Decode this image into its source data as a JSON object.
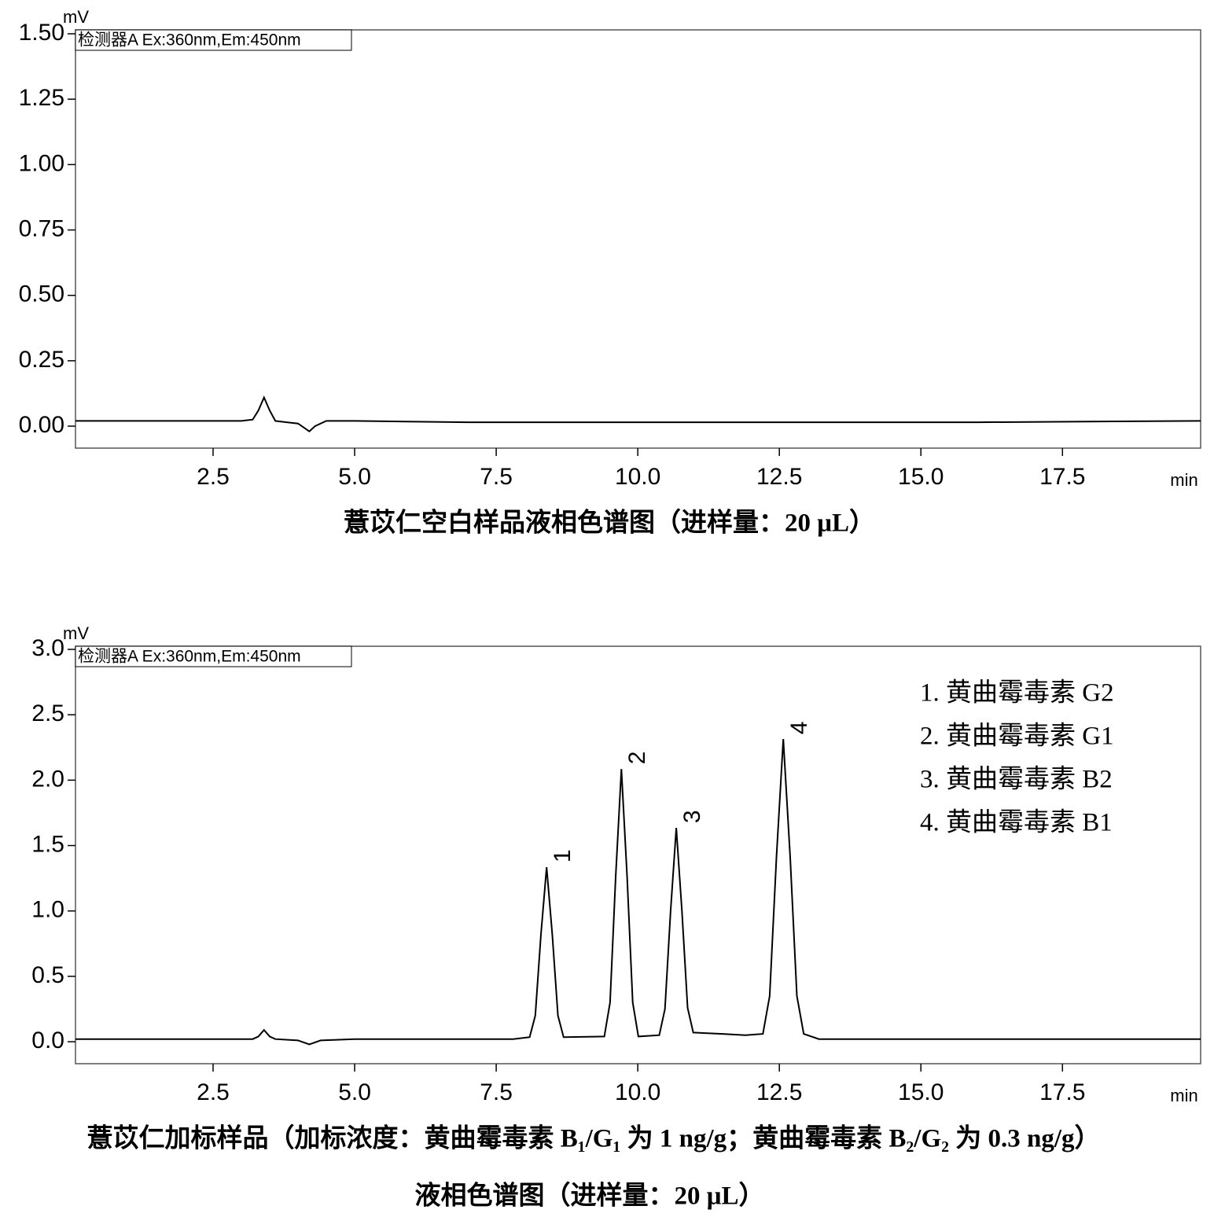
{
  "chart_data": [
    {
      "type": "line",
      "y_unit": "mV",
      "x_unit": "min",
      "detector": "检测器A Ex:360nm,Em:450nm",
      "caption": "薏苡仁空白样品液相色谱图（进样量：20 μL）",
      "color": "#000000",
      "x": [
        0.07,
        1,
        2,
        3,
        3.2,
        3.3,
        3.4,
        3.5,
        3.6,
        3.8,
        4.0,
        4.1,
        4.2,
        4.3,
        4.5,
        5,
        7,
        10,
        13,
        16,
        19.94
      ],
      "values": [
        0.02,
        0.02,
        0.02,
        0.02,
        0.025,
        0.06,
        0.11,
        0.06,
        0.02,
        0.015,
        0.01,
        -0.005,
        -0.02,
        0.0,
        0.02,
        0.02,
        0.015,
        0.015,
        0.015,
        0.015,
        0.02
      ],
      "xlim": [
        0.07,
        19.94
      ],
      "xticks": [
        2.5,
        {
          "value": 5,
          "label": "5.0"
        },
        7.5,
        {
          "value": 10,
          "label": "10.0"
        },
        12.5,
        {
          "value": 15,
          "label": "15.0"
        },
        17.5
      ],
      "ylim": [
        -0.084,
        1.515
      ],
      "yticks": [
        {
          "value": 0,
          "label": "0.00"
        },
        0.25,
        {
          "value": 0.5,
          "label": "0.50"
        },
        0.75,
        {
          "value": 1,
          "label": "1.00"
        },
        1.25,
        {
          "value": 1.5,
          "label": "1.50"
        }
      ]
    },
    {
      "type": "line",
      "y_unit": "mV",
      "x_unit": "min",
      "detector": "检测器A Ex:360nm,Em:450nm",
      "caption": [
        "薏苡仁加标样品（加标浓度：黄曲霉毒素 B₁/G₁ 为 1 ng/g；黄曲霉毒素 B₂/G₂ 为 0.3 ng/g）",
        "液相色谱图（进样量：20 μL）"
      ],
      "color": "#000000",
      "peak_labels": [
        "1",
        "2",
        "3",
        "4"
      ],
      "legend_items": [
        "1.  黄曲霉毒素 G2",
        "2.  黄曲霉毒素 G1",
        "3.  黄曲霉毒素 B2",
        "4.  黄曲霉毒素 B1"
      ],
      "x": [
        0.07,
        2,
        3.2,
        3.3,
        3.4,
        3.5,
        3.6,
        4.0,
        4.2,
        4.4,
        5,
        7,
        7.8,
        8.09,
        8.19,
        8.29,
        8.39,
        8.49,
        8.59,
        8.69,
        9.41,
        9.51,
        9.61,
        9.71,
        9.81,
        9.91,
        10.01,
        10.38,
        10.48,
        10.58,
        10.68,
        10.78,
        10.88,
        10.98,
        11.5,
        11.9,
        12.21,
        12.33,
        12.45,
        12.57,
        12.69,
        12.81,
        12.93,
        13.2,
        15,
        19.94
      ],
      "values": [
        0.02,
        0.02,
        0.02,
        0.04,
        0.09,
        0.04,
        0.02,
        0.01,
        -0.02,
        0.01,
        0.02,
        0.02,
        0.02,
        0.035,
        0.2,
        0.82,
        1.334,
        0.82,
        0.2,
        0.035,
        0.04,
        0.3,
        1.27,
        2.085,
        1.27,
        0.3,
        0.04,
        0.05,
        0.25,
        1.0,
        1.635,
        1.0,
        0.26,
        0.07,
        0.06,
        0.05,
        0.06,
        0.35,
        1.42,
        2.314,
        1.42,
        0.35,
        0.06,
        0.02,
        0.02,
        0.02
      ],
      "xlim": [
        0.07,
        19.94
      ],
      "xticks": [
        2.5,
        {
          "value": 5,
          "label": "5.0"
        },
        7.5,
        {
          "value": 10,
          "label": "10.0"
        },
        12.5,
        {
          "value": 15,
          "label": "15.0"
        },
        17.5
      ],
      "ylim": [
        -0.168,
        3.024
      ],
      "yticks": [
        {
          "value": 0,
          "label": "0.0"
        },
        0.5,
        {
          "value": 1,
          "label": "1.0"
        },
        1.5,
        {
          "value": 2,
          "label": "2.0"
        },
        2.5,
        {
          "value": 3,
          "label": "3.0"
        }
      ]
    }
  ]
}
